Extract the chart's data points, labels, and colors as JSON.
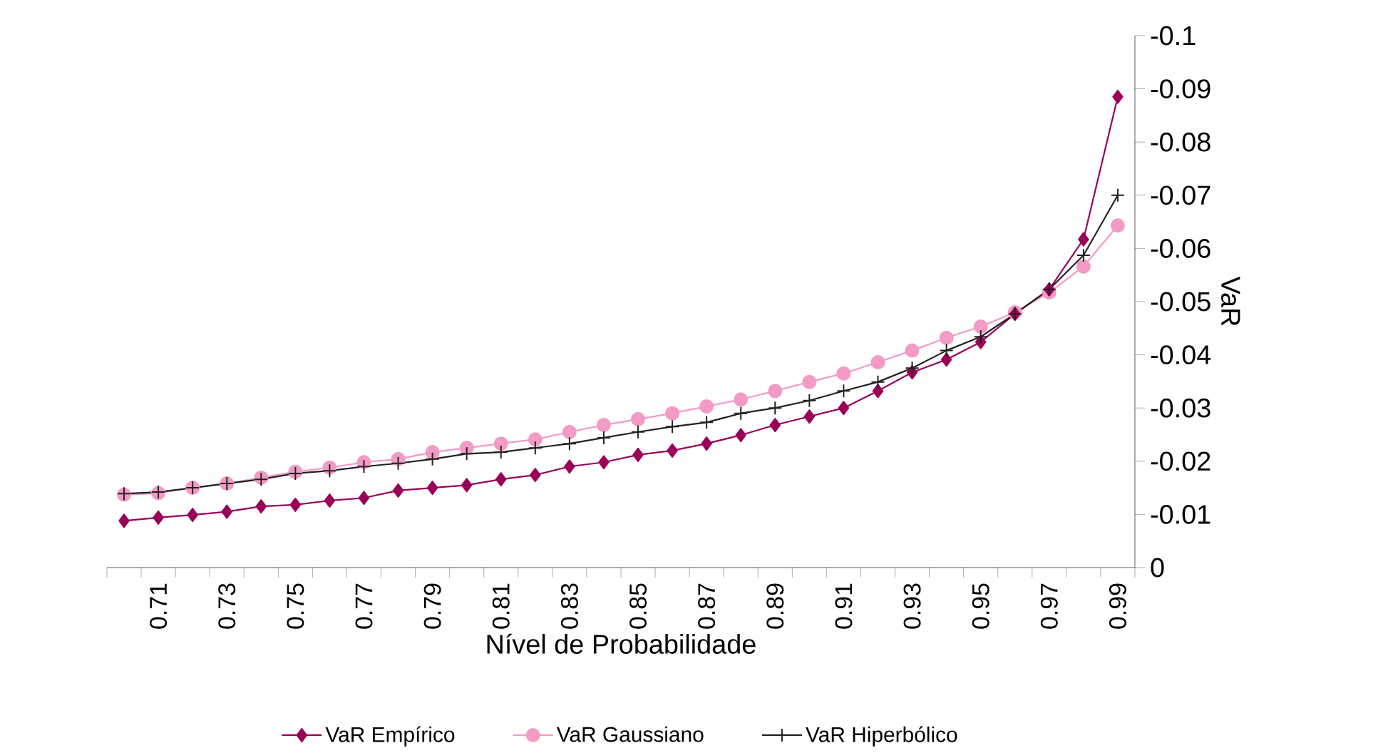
{
  "chart_data": {
    "type": "line",
    "xlabel": "Nível de Probabilidade",
    "ylabel": "VaR",
    "categories": [
      null,
      "0.71",
      null,
      "0.73",
      null,
      "0.75",
      null,
      "0.77",
      null,
      "0.79",
      null,
      "0.81",
      null,
      "0.83",
      null,
      "0.85",
      null,
      "0.87",
      null,
      "0.89",
      null,
      "0.91",
      null,
      "0.93",
      null,
      "0.95",
      null,
      "0.97",
      null,
      "0.99"
    ],
    "ylim": [
      0,
      -0.1
    ],
    "yticks": [
      0,
      -0.01,
      -0.02,
      -0.03,
      -0.04,
      -0.05,
      -0.06,
      -0.07,
      -0.08,
      -0.09,
      -0.1
    ],
    "legend": "bottom",
    "grid": false,
    "series": [
      {
        "name": "VaR Empírico",
        "color": "#9b0059",
        "marker": "diamond",
        "values": [
          -0.0088,
          -0.0094,
          -0.0099,
          -0.0105,
          -0.0115,
          -0.0118,
          -0.0126,
          -0.0131,
          -0.0145,
          -0.015,
          -0.0155,
          -0.0166,
          -0.0174,
          -0.019,
          -0.0198,
          -0.0212,
          -0.022,
          -0.0233,
          -0.0249,
          -0.0268,
          -0.0284,
          -0.03,
          -0.0332,
          -0.0367,
          -0.0391,
          -0.0424,
          -0.0477,
          -0.0523,
          -0.0617,
          -0.0885
        ]
      },
      {
        "name": "VaR Gaussiano",
        "color": "#f29bc4",
        "marker": "circle",
        "values": [
          -0.0137,
          -0.014,
          -0.015,
          -0.0158,
          -0.0169,
          -0.018,
          -0.0188,
          -0.0198,
          -0.0204,
          -0.0217,
          -0.0225,
          -0.0233,
          -0.0241,
          -0.0255,
          -0.0268,
          -0.0279,
          -0.029,
          -0.0303,
          -0.0316,
          -0.0332,
          -0.0349,
          -0.0365,
          -0.0386,
          -0.0408,
          -0.0432,
          -0.0453,
          -0.048,
          -0.0517,
          -0.0566,
          -0.0643
        ]
      },
      {
        "name": "VaR Hiperbólico",
        "color": "#222222",
        "marker": "cross",
        "values": [
          -0.0139,
          -0.0142,
          -0.015,
          -0.0158,
          -0.0166,
          -0.0177,
          -0.0182,
          -0.019,
          -0.0196,
          -0.0204,
          -0.0214,
          -0.0217,
          -0.0225,
          -0.0233,
          -0.0244,
          -0.0255,
          -0.0265,
          -0.0273,
          -0.029,
          -0.03,
          -0.0314,
          -0.0332,
          -0.0349,
          -0.0375,
          -0.0408,
          -0.0434,
          -0.0477,
          -0.0523,
          -0.0587,
          -0.07
        ]
      }
    ]
  }
}
